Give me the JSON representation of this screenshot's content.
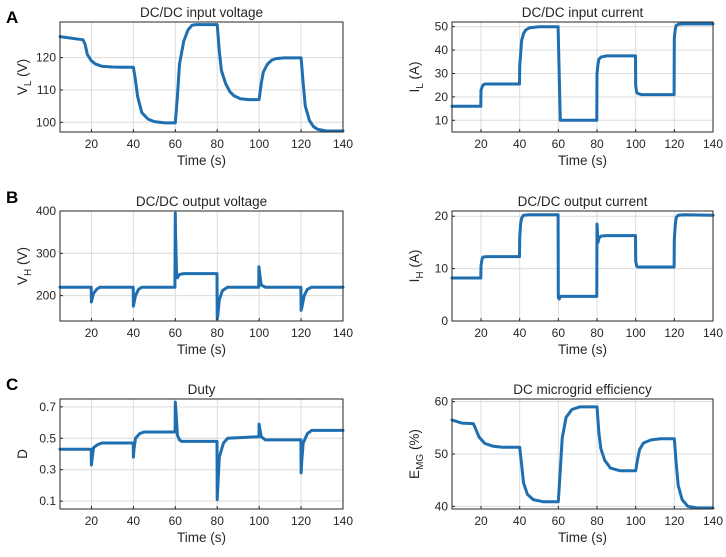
{
  "panel_letters": [
    "A",
    "B",
    "C"
  ],
  "chart_data": [
    {
      "type": "line",
      "title": "DC/DC input voltage",
      "xlabel": "Time (s)",
      "ylabel": "V",
      "ylabel_sub": "L",
      "ylabel_unit": " (V)",
      "xlim": [
        5,
        140
      ],
      "ylim": [
        97,
        131
      ],
      "xticks": [
        20,
        40,
        60,
        80,
        100,
        120,
        140
      ],
      "yticks": [
        100,
        110,
        120
      ],
      "series": [
        {
          "name": "V_L",
          "x": [
            5,
            16,
            17,
            18,
            20,
            22,
            25,
            30,
            35,
            40,
            41,
            42,
            44,
            47,
            50,
            55,
            60,
            61,
            62,
            64,
            66,
            68,
            70,
            75,
            80,
            81,
            82,
            84,
            86,
            88,
            91,
            95,
            100,
            101,
            102,
            104,
            106,
            108,
            112,
            120,
            121,
            122,
            124,
            126,
            128,
            132,
            140
          ],
          "y": [
            126.5,
            125.5,
            124,
            121,
            119,
            118,
            117.3,
            117.1,
            117,
            117,
            113,
            108,
            103,
            101,
            100.2,
            99.8,
            99.8,
            108,
            118,
            125,
            128.5,
            130,
            130.2,
            130.2,
            130.2,
            122,
            116,
            112,
            109.5,
            108.2,
            107.3,
            107,
            107,
            112,
            115.5,
            118,
            119.2,
            119.7,
            119.9,
            119.9,
            112,
            105,
            100.5,
            98.6,
            97.8,
            97.3,
            97.3
          ]
        }
      ]
    },
    {
      "type": "line",
      "title": "DC/DC input current",
      "xlabel": "Time (s)",
      "ylabel": "I",
      "ylabel_sub": "L",
      "ylabel_unit": " (A)",
      "xlim": [
        5,
        140
      ],
      "ylim": [
        5,
        52
      ],
      "xticks": [
        20,
        40,
        60,
        80,
        100,
        120,
        140
      ],
      "yticks": [
        10,
        20,
        30,
        40,
        50
      ],
      "series": [
        {
          "name": "I_L",
          "x": [
            5,
            19.9,
            20,
            21,
            22,
            25,
            39.9,
            40,
            41,
            42,
            43,
            45,
            50,
            59.9,
            60,
            61,
            62,
            70,
            79.9,
            80,
            80.5,
            81,
            82,
            85,
            99.9,
            100,
            100.5,
            101,
            103,
            110,
            119.9,
            120,
            120.5,
            121,
            122,
            125,
            140
          ],
          "y": [
            16,
            16,
            23,
            25,
            25.5,
            25.5,
            25.5,
            33,
            44,
            47,
            48.5,
            49.5,
            50,
            50,
            46,
            10,
            10,
            10,
            10,
            30,
            34,
            36,
            37,
            37.5,
            37.5,
            25,
            22,
            21.5,
            21,
            21,
            21,
            45,
            49,
            50.5,
            51,
            51.2,
            51.2
          ]
        }
      ]
    },
    {
      "type": "line",
      "title": "DC/DC output voltage",
      "xlabel": "Time (s)",
      "ylabel": "V",
      "ylabel_sub": "H",
      "ylabel_unit": " (V)",
      "xlim": [
        5,
        140
      ],
      "ylim": [
        140,
        400
      ],
      "xticks": [
        20,
        40,
        60,
        80,
        100,
        120,
        140
      ],
      "yticks": [
        200,
        300,
        400
      ],
      "series": [
        {
          "name": "V_H",
          "x": [
            5,
            19.9,
            20,
            20.2,
            21,
            22.5,
            24,
            39.9,
            40,
            40.2,
            41,
            42.5,
            44,
            59.8,
            60,
            60.1,
            60.6,
            61,
            62,
            64,
            67,
            70,
            79.9,
            80,
            80.3,
            81,
            82.5,
            85,
            99.8,
            99.9,
            100.3,
            101,
            103,
            119.9,
            120,
            120.3,
            121.5,
            123,
            125,
            140
          ],
          "y": [
            220,
            220,
            185,
            190,
            205,
            215,
            220,
            220,
            175,
            180,
            200,
            215,
            220,
            220,
            395,
            350,
            250,
            242,
            250,
            252,
            252,
            252,
            252,
            145,
            155,
            190,
            212,
            220,
            220,
            268,
            250,
            225,
            220,
            220,
            165,
            170,
            200,
            215,
            220,
            220
          ]
        }
      ]
    },
    {
      "type": "line",
      "title": "DC/DC output current",
      "xlabel": "Time (s)",
      "ylabel": "I",
      "ylabel_sub": "H",
      "ylabel_unit": " (A)",
      "xlim": [
        5,
        140
      ],
      "ylim": [
        0,
        21
      ],
      "xticks": [
        20,
        40,
        60,
        80,
        100,
        120,
        140
      ],
      "yticks": [
        0,
        10,
        20
      ],
      "series": [
        {
          "name": "I_H",
          "x": [
            5,
            19.9,
            20,
            20.5,
            21,
            23,
            39.9,
            40,
            40.5,
            41,
            42,
            45,
            59.9,
            60,
            60.5,
            61,
            65,
            79.9,
            80,
            80.5,
            81,
            82,
            85,
            99.9,
            100,
            100.5,
            101,
            105,
            119.9,
            120,
            120.5,
            121,
            122,
            125,
            140
          ],
          "y": [
            8.2,
            8.2,
            10.5,
            11.8,
            12.2,
            12.3,
            12.3,
            16,
            18.5,
            19.6,
            20.2,
            20.3,
            20.3,
            4.5,
            4.2,
            4.7,
            4.7,
            4.7,
            18.5,
            15,
            15.8,
            16.2,
            16.3,
            16.3,
            11.5,
            10.5,
            10.3,
            10.3,
            10.3,
            15.5,
            18.5,
            19.8,
            20.2,
            20.3,
            20.2
          ]
        }
      ]
    },
    {
      "type": "line",
      "title": "Duty",
      "xlabel": "Time (s)",
      "ylabel": "D",
      "ylabel_sub": "",
      "ylabel_unit": "",
      "xlim": [
        5,
        140
      ],
      "ylim": [
        0.05,
        0.75
      ],
      "xticks": [
        20,
        40,
        60,
        80,
        100,
        120,
        140
      ],
      "yticks": [
        0.1,
        0.3,
        0.5,
        0.7
      ],
      "series": [
        {
          "name": "D",
          "x": [
            5,
            19.9,
            20,
            20.3,
            21,
            23,
            25,
            39.9,
            40,
            40.3,
            41,
            43,
            45,
            59.9,
            60,
            60.3,
            61,
            62,
            63,
            65,
            79.9,
            80,
            80.3,
            81,
            83,
            85,
            99.9,
            100,
            100.3,
            101,
            103,
            119.9,
            120,
            120.3,
            121,
            123,
            125,
            140
          ],
          "y": [
            0.43,
            0.43,
            0.33,
            0.37,
            0.44,
            0.46,
            0.47,
            0.47,
            0.38,
            0.43,
            0.5,
            0.53,
            0.54,
            0.54,
            0.73,
            0.68,
            0.52,
            0.49,
            0.48,
            0.48,
            0.48,
            0.11,
            0.2,
            0.38,
            0.47,
            0.5,
            0.51,
            0.59,
            0.56,
            0.51,
            0.49,
            0.49,
            0.28,
            0.35,
            0.47,
            0.53,
            0.55,
            0.55
          ]
        }
      ]
    },
    {
      "type": "line",
      "title": "DC microgrid efficiency",
      "xlabel": "Time (s)",
      "ylabel": "E",
      "ylabel_sub": "MG",
      "ylabel_unit": " (%)",
      "xlim": [
        5,
        140
      ],
      "ylim": [
        39.5,
        60.5
      ],
      "xticks": [
        20,
        40,
        60,
        80,
        100,
        120,
        140
      ],
      "yticks": [
        40,
        50,
        60
      ],
      "series": [
        {
          "name": "E_MG",
          "x": [
            5,
            10,
            16,
            17,
            19,
            22,
            26,
            31,
            40,
            41,
            42,
            44,
            47,
            52,
            60,
            61,
            62,
            64,
            67,
            71,
            80,
            81,
            82,
            84,
            87,
            92,
            100,
            101,
            102,
            104,
            108,
            113,
            120,
            121,
            122,
            124,
            127,
            132,
            140
          ],
          "y": [
            56.5,
            55.9,
            55.8,
            55,
            53.2,
            52,
            51.5,
            51.3,
            51.3,
            48,
            44.5,
            42.3,
            41.3,
            40.9,
            40.9,
            47,
            53,
            57,
            58.5,
            59,
            59,
            54,
            51,
            48.8,
            47.3,
            46.8,
            46.8,
            49,
            50.8,
            52.1,
            52.7,
            52.9,
            52.9,
            48,
            44,
            41.3,
            40,
            39.7,
            39.7
          ]
        }
      ]
    }
  ]
}
